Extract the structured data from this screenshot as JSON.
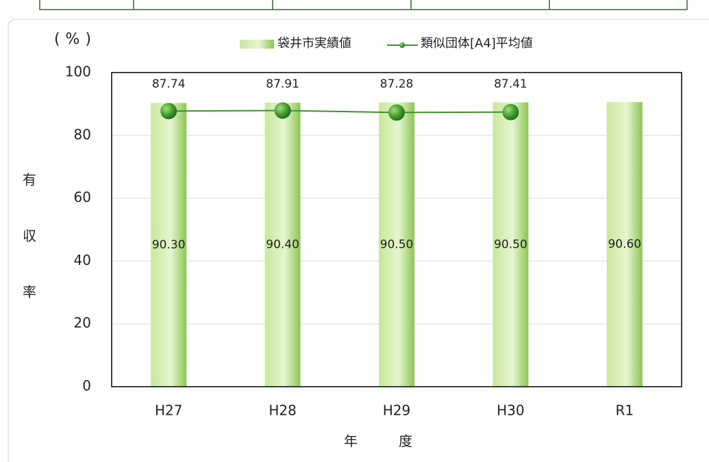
{
  "chart_data": {
    "type": "bar_line",
    "unit_label": "(%)",
    "y_label": "有収率",
    "x_label": "年度",
    "categories": [
      "H27",
      "H28",
      "H29",
      "H30",
      "R1"
    ],
    "series": [
      {
        "name": "袋井市実績値",
        "type": "bar",
        "color": "#a9d86e",
        "values": [
          90.3,
          90.4,
          90.5,
          90.5,
          90.6
        ],
        "value_labels": [
          "90.30",
          "90.40",
          "90.50",
          "90.50",
          "90.60"
        ]
      },
      {
        "name": "類似団体[A4]平均値",
        "type": "line",
        "color": "#3f8f2e",
        "values": [
          87.74,
          87.91,
          87.28,
          87.41,
          null
        ]
      }
    ],
    "ylim": [
      0,
      100
    ],
    "yticks": [
      0,
      20,
      40,
      60,
      80,
      100
    ],
    "grid": true,
    "legend": "top"
  }
}
